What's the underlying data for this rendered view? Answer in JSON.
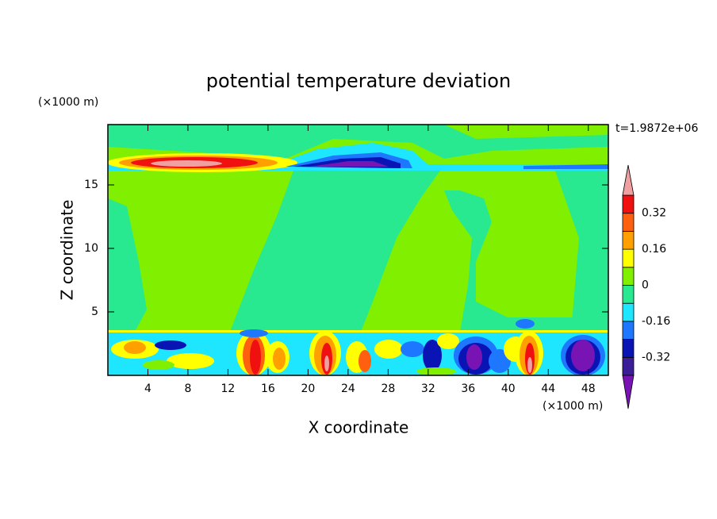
{
  "chart_data": {
    "type": "contour",
    "title": "potential temperature deviation",
    "x_label": "X coordinate",
    "y_label": "Z coordinate",
    "x_unit_label": "(×1000 m)",
    "y_unit_label": "(×1000 m)",
    "time_label": "t=1.9872e+06",
    "xlim": [
      0,
      50
    ],
    "ylim": [
      0,
      19.75
    ],
    "xticks": [
      4,
      8,
      12,
      16,
      20,
      24,
      28,
      32,
      36,
      40,
      44,
      48
    ],
    "yticks": [
      5,
      10,
      15
    ],
    "colorbar": {
      "levels": [
        -0.4,
        -0.32,
        -0.24,
        -0.16,
        -0.08,
        0,
        0.08,
        0.16,
        0.24,
        0.32,
        0.4
      ],
      "ticks": [
        -0.32,
        -0.16,
        0,
        0.16,
        0.32
      ],
      "colors": [
        "#7814b4",
        "#3c1e96",
        "#0a14b4",
        "#1e78ff",
        "#1ee6ff",
        "#28e890",
        "#80f000",
        "#ffff00",
        "#ffa000",
        "#ff6010",
        "#f01010",
        "#f0a0a0"
      ]
    }
  }
}
